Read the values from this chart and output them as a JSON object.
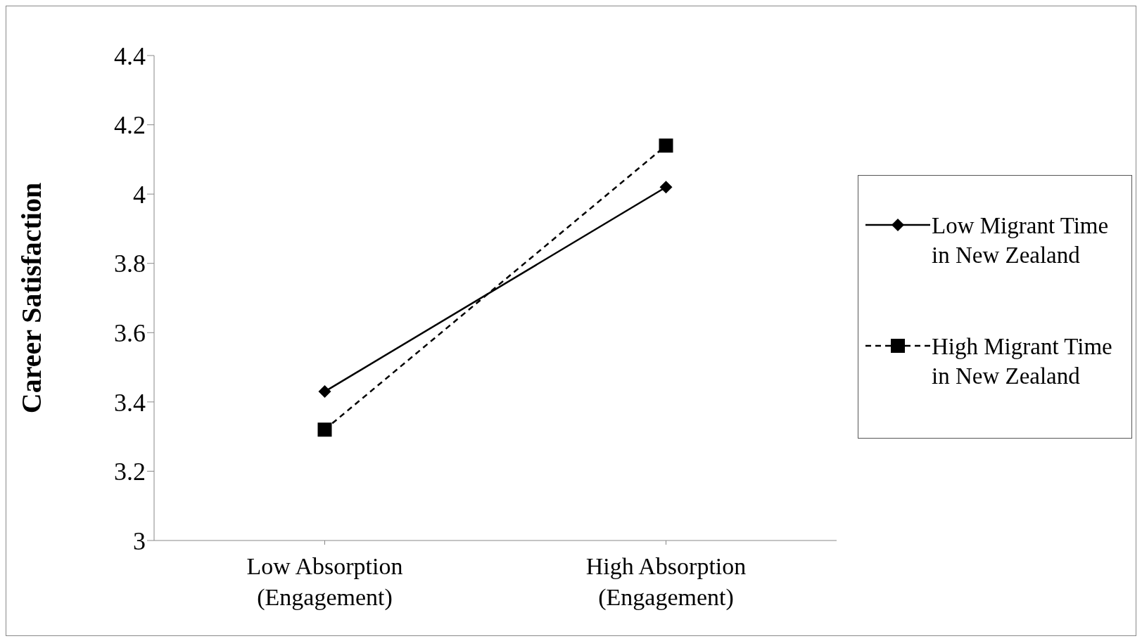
{
  "chart_data": {
    "type": "line",
    "ylabel": "Career Satisfaction",
    "categories": [
      "Low Absorption (Engagement)",
      "High Absorption (Engagement)"
    ],
    "series": [
      {
        "name": "Low Migrant Time in New Zealand",
        "color": "#000000",
        "values": [
          3.43,
          4.02
        ],
        "marker": "diamond",
        "line_style": "solid"
      },
      {
        "name": "High Migrant Time in New Zealand",
        "color": "#000000",
        "values": [
          3.32,
          4.14
        ],
        "marker": "square",
        "line_style": "dashed"
      }
    ],
    "ylim": [
      3,
      4.4
    ],
    "yticks": [
      3,
      3.2,
      3.4,
      3.6,
      3.8,
      4,
      4.2,
      4.4
    ],
    "grid": false,
    "legend": "right"
  }
}
